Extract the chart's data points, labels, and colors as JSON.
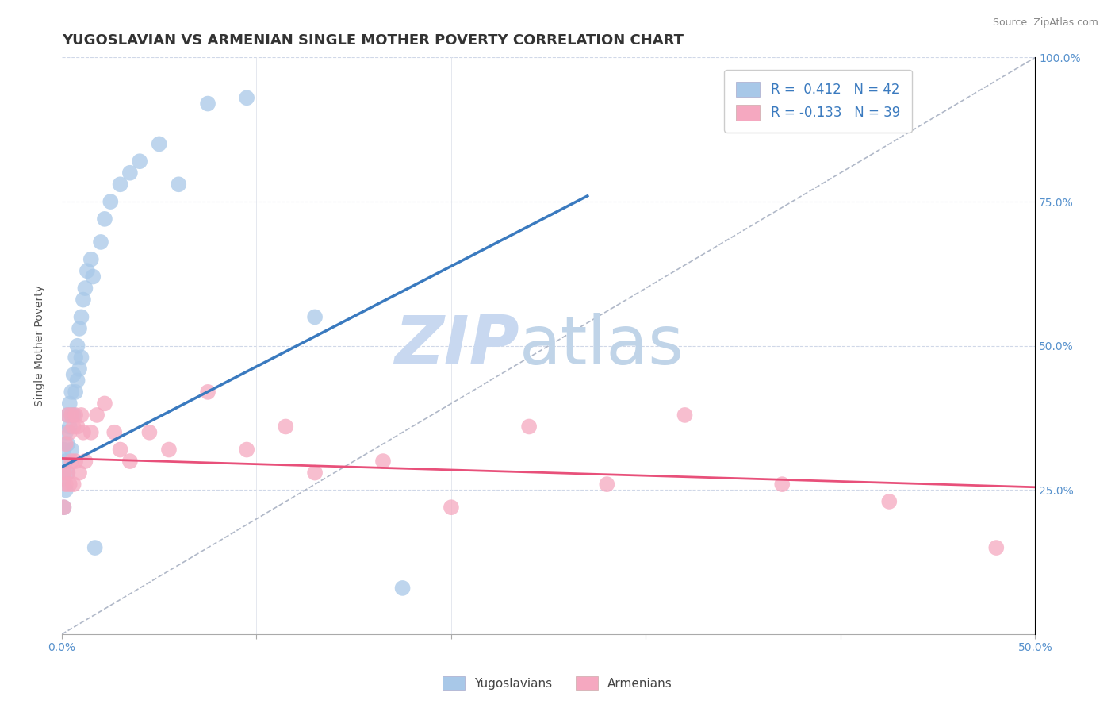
{
  "title": "YUGOSLAVIAN VS ARMENIAN SINGLE MOTHER POVERTY CORRELATION CHART",
  "source": "Source: ZipAtlas.com",
  "ylabel": "Single Mother Poverty",
  "xlim": [
    0,
    0.5
  ],
  "ylim": [
    0,
    1.0
  ],
  "xtick_vals": [
    0.0,
    0.1,
    0.2,
    0.3,
    0.4,
    0.5
  ],
  "xticklabels": [
    "0.0%",
    "",
    "",
    "",
    "",
    "50.0%"
  ],
  "ytick_vals": [
    0.0,
    0.25,
    0.5,
    0.75,
    1.0
  ],
  "yticklabels_right": [
    "",
    "25.0%",
    "50.0%",
    "75.0%",
    "100.0%"
  ],
  "yugoslavian_color": "#a8c8e8",
  "armenian_color": "#f5a8c0",
  "blue_line_color": "#3a7abf",
  "pink_line_color": "#e8507a",
  "ref_line_color": "#b0b8c8",
  "legend_R_yugo": "0.412",
  "legend_N_yugo": "42",
  "legend_R_arme": "-0.133",
  "legend_N_arme": "39",
  "yugo_blue_line_x0": 0.0,
  "yugo_blue_line_y0": 0.29,
  "yugo_blue_line_x1": 0.27,
  "yugo_blue_line_y1": 0.76,
  "arme_pink_line_x0": 0.0,
  "arme_pink_line_y0": 0.305,
  "arme_pink_line_x1": 0.5,
  "arme_pink_line_y1": 0.255,
  "yugoslavian_x": [
    0.001,
    0.001,
    0.001,
    0.002,
    0.002,
    0.002,
    0.003,
    0.003,
    0.003,
    0.004,
    0.004,
    0.005,
    0.005,
    0.005,
    0.006,
    0.006,
    0.007,
    0.007,
    0.008,
    0.008,
    0.009,
    0.009,
    0.01,
    0.01,
    0.011,
    0.012,
    0.013,
    0.015,
    0.016,
    0.017,
    0.02,
    0.022,
    0.025,
    0.03,
    0.035,
    0.04,
    0.05,
    0.06,
    0.075,
    0.095,
    0.13,
    0.175
  ],
  "yugoslavian_y": [
    0.32,
    0.27,
    0.22,
    0.35,
    0.3,
    0.25,
    0.38,
    0.33,
    0.28,
    0.4,
    0.36,
    0.42,
    0.38,
    0.32,
    0.45,
    0.38,
    0.48,
    0.42,
    0.5,
    0.44,
    0.53,
    0.46,
    0.55,
    0.48,
    0.58,
    0.6,
    0.63,
    0.65,
    0.62,
    0.15,
    0.68,
    0.72,
    0.75,
    0.78,
    0.8,
    0.82,
    0.85,
    0.78,
    0.92,
    0.93,
    0.55,
    0.08
  ],
  "armenian_x": [
    0.001,
    0.001,
    0.002,
    0.002,
    0.003,
    0.003,
    0.004,
    0.004,
    0.005,
    0.005,
    0.006,
    0.006,
    0.007,
    0.007,
    0.008,
    0.009,
    0.01,
    0.011,
    0.012,
    0.015,
    0.018,
    0.022,
    0.027,
    0.03,
    0.035,
    0.045,
    0.055,
    0.075,
    0.095,
    0.115,
    0.13,
    0.165,
    0.2,
    0.24,
    0.28,
    0.32,
    0.37,
    0.425,
    0.48
  ],
  "armenian_y": [
    0.28,
    0.22,
    0.33,
    0.26,
    0.38,
    0.28,
    0.35,
    0.26,
    0.38,
    0.3,
    0.36,
    0.26,
    0.38,
    0.3,
    0.36,
    0.28,
    0.38,
    0.35,
    0.3,
    0.35,
    0.38,
    0.4,
    0.35,
    0.32,
    0.3,
    0.35,
    0.32,
    0.42,
    0.32,
    0.36,
    0.28,
    0.3,
    0.22,
    0.36,
    0.26,
    0.38,
    0.26,
    0.23,
    0.15
  ],
  "background_color": "#ffffff",
  "watermark_zip": "ZIP",
  "watermark_atlas": "atlas",
  "watermark_color_zip": "#c8d8f0",
  "watermark_color_atlas": "#c0d4e8",
  "title_fontsize": 13,
  "axis_label_fontsize": 10,
  "tick_fontsize": 10,
  "legend_fontsize": 12,
  "source_fontsize": 9
}
